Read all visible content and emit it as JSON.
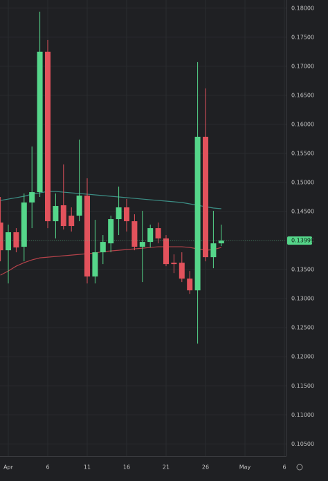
{
  "chart_data": {
    "type": "candlestick",
    "categories": [
      null,
      "Apr",
      null,
      null,
      null,
      null,
      "6",
      null,
      null,
      null,
      null,
      "11",
      null,
      null,
      null,
      null,
      "16",
      null,
      null,
      null,
      null,
      "21",
      null,
      null,
      null,
      null,
      "26",
      null,
      null,
      null,
      null,
      "May",
      null,
      null,
      null,
      null,
      "6"
    ],
    "open": [
      0.1431,
      0.13833,
      0.14143,
      0.13893,
      0.14655,
      0.14833,
      0.1725,
      0.14333,
      0.14607,
      0.14429,
      0.14429,
      0.14774,
      0.13381,
      0.13798,
      0.13952,
      0.14369,
      0.14571,
      0.14333,
      0.13893,
      0.13976,
      0.14214,
      0.14036,
      0.13619,
      0.13619,
      0.13345,
      0.13143,
      0.15786,
      0.13714,
      0.13952,
      null,
      null,
      null,
      null,
      null,
      null,
      null,
      null
    ],
    "high": [
      0.1475,
      0.14274,
      0.14214,
      0.1481,
      0.15619,
      0.1794,
      0.17452,
      0.1481,
      0.1531,
      0.14571,
      0.15738,
      0.15071,
      0.14357,
      0.14095,
      0.14429,
      0.14929,
      0.14714,
      0.14452,
      0.14512,
      0.14274,
      0.1431,
      0.14095,
      0.13762,
      0.13798,
      0.13476,
      0.17071,
      0.16619,
      0.14512,
      0.14274,
      null,
      null,
      null,
      null,
      null,
      null,
      null,
      null
    ],
    "low": [
      0.13643,
      0.13262,
      0.13798,
      0.13643,
      0.14214,
      0.1475,
      0.14214,
      0.14036,
      0.1419,
      0.14155,
      0.14333,
      0.13262,
      0.13262,
      0.13595,
      0.13798,
      0.14095,
      0.14155,
      0.13833,
      0.13286,
      0.13881,
      0.13952,
      0.1356,
      0.1344,
      0.13286,
      0.13083,
      0.12226,
      0.13643,
      0.13524,
      0.13905,
      null,
      null,
      null,
      null,
      null,
      null,
      null,
      null
    ],
    "close": [
      0.13833,
      0.14143,
      0.13881,
      0.14655,
      0.14833,
      0.1725,
      0.14333,
      0.14595,
      0.1425,
      0.1425,
      0.14774,
      0.13381,
      0.13798,
      0.13976,
      0.14369,
      0.14571,
      0.14333,
      0.13893,
      0.13976,
      0.14214,
      0.14036,
      0.13595,
      0.13595,
      0.13345,
      0.13143,
      0.15786,
      0.13714,
      0.13952,
      0.13999,
      null,
      null,
      null,
      null,
      null,
      null,
      null,
      null
    ],
    "up_color": "#55d68a",
    "down_color": "#e2525c",
    "moving_averages": [
      {
        "color": "#3c8f86",
        "values": [
          0.1469,
          0.14714,
          0.14738,
          0.14762,
          0.14798,
          0.14821,
          0.14845,
          0.14845,
          0.14833,
          0.14821,
          0.1481,
          0.14798,
          0.14786,
          0.14774,
          0.14762,
          0.1475,
          0.14738,
          0.14726,
          0.14714,
          0.14702,
          0.1469,
          0.14679,
          0.14667,
          0.14655,
          0.14631,
          0.14607,
          0.14583,
          0.1456,
          0.14548,
          null,
          null,
          null,
          null,
          null,
          null,
          null,
          null
        ]
      },
      {
        "color": "#b5424a",
        "values": [
          0.13405,
          0.13476,
          0.1356,
          0.13619,
          0.13667,
          0.13702,
          0.13714,
          0.13726,
          0.13738,
          0.1375,
          0.13762,
          0.13774,
          0.13786,
          0.1381,
          0.13821,
          0.13833,
          0.13845,
          0.13857,
          0.13869,
          0.13881,
          0.13893,
          0.13893,
          0.13893,
          0.13893,
          0.13881,
          0.13857,
          0.13833,
          0.13845,
          0.13881,
          null,
          null,
          null,
          null,
          null,
          null,
          null,
          null
        ]
      }
    ],
    "last_price": 0.13999,
    "ylim": [
      0.1029,
      0.1814
    ],
    "yticks": [
      {
        "value": 0.105,
        "label": "0.10500"
      },
      {
        "value": 0.11,
        "label": "0.11000"
      },
      {
        "value": 0.115,
        "label": "0.11500"
      },
      {
        "value": 0.12,
        "label": "0.12000"
      },
      {
        "value": 0.125,
        "label": "0.12500"
      },
      {
        "value": 0.13,
        "label": "0.13000"
      },
      {
        "value": 0.135,
        "label": "0.13500"
      },
      {
        "value": 0.14,
        "label": "0.14000"
      },
      {
        "value": 0.145,
        "label": "0.14500"
      },
      {
        "value": 0.15,
        "label": "0.15000"
      },
      {
        "value": 0.155,
        "label": "0.15500"
      },
      {
        "value": 0.16,
        "label": "0.16000"
      },
      {
        "value": 0.165,
        "label": "0.16500"
      },
      {
        "value": 0.17,
        "label": "0.17000"
      },
      {
        "value": 0.175,
        "label": "0.17500"
      },
      {
        "value": 0.18,
        "label": "0.18000"
      }
    ],
    "grid": true
  }
}
